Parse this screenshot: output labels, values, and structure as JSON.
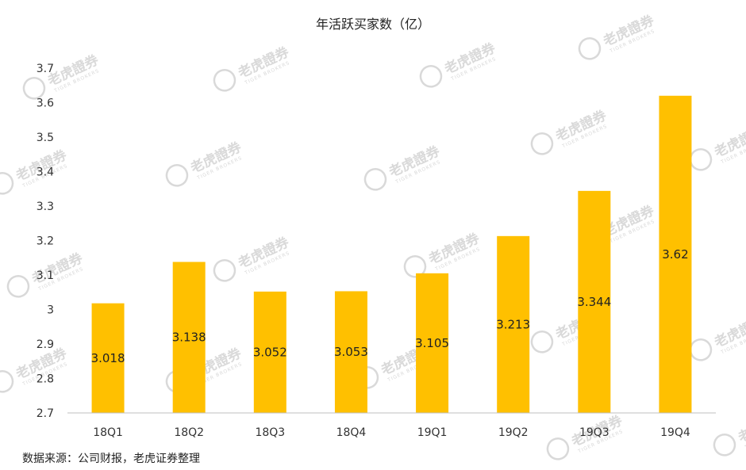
{
  "chart_data": {
    "type": "bar",
    "title": "年活跃买家数（亿）",
    "categories": [
      "18Q1",
      "18Q2",
      "18Q3",
      "18Q4",
      "19Q1",
      "19Q2",
      "19Q3",
      "19Q4"
    ],
    "values": [
      3.018,
      3.138,
      3.052,
      3.053,
      3.105,
      3.213,
      3.344,
      3.62
    ],
    "data_labels": [
      "3.018",
      "3.138",
      "3.052",
      "3.053",
      "3.105",
      "3.213",
      "3.344",
      "3.62"
    ],
    "yticks": [
      "2.7",
      "2.8",
      "2.9",
      "3",
      "3.1",
      "3.2",
      "3.3",
      "3.4",
      "3.5",
      "3.6",
      "3.7"
    ],
    "ylim": [
      2.7,
      3.7
    ],
    "xlabel": "",
    "ylabel": "",
    "grid": false,
    "legend": "none",
    "bar_color": "#FFC000",
    "axis_color": "#BFBFBF"
  },
  "source_note": "数据来源：公司财报，老虎证券整理",
  "watermark": {
    "brand": "老虎證券",
    "sub": "TIGER BROKERS",
    "color": "#D9D9D9"
  }
}
